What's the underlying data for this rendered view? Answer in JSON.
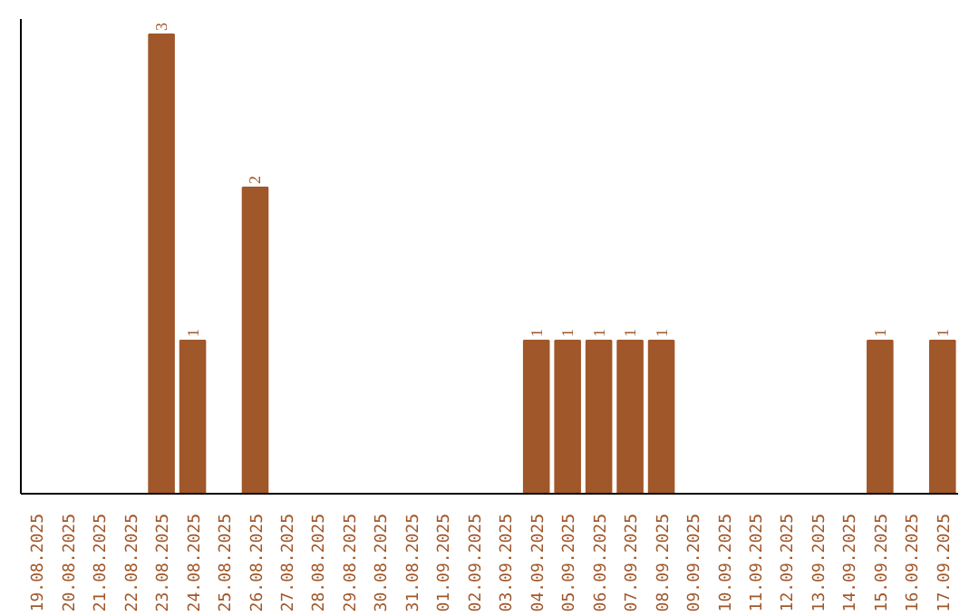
{
  "chart_data": {
    "type": "bar",
    "categories": [
      "19.08.2025",
      "20.08.2025",
      "21.08.2025",
      "22.08.2025",
      "23.08.2025",
      "24.08.2025",
      "25.08.2025",
      "26.08.2025",
      "27.08.2025",
      "28.08.2025",
      "29.08.2025",
      "30.08.2025",
      "31.08.2025",
      "01.09.2025",
      "02.09.2025",
      "03.09.2025",
      "04.09.2025",
      "05.09.2025",
      "06.09.2025",
      "07.09.2025",
      "08.09.2025",
      "09.09.2025",
      "10.09.2025",
      "11.09.2025",
      "12.09.2025",
      "13.09.2025",
      "14.09.2025",
      "15.09.2025",
      "16.09.2025",
      "17.09.2025"
    ],
    "values": [
      0,
      0,
      0,
      0,
      3,
      1,
      0,
      2,
      0,
      0,
      0,
      0,
      0,
      0,
      0,
      0,
      1,
      1,
      1,
      1,
      1,
      0,
      0,
      0,
      0,
      0,
      0,
      1,
      0,
      1
    ],
    "value_labels": [
      null,
      null,
      null,
      null,
      "3",
      "1",
      null,
      "2",
      null,
      null,
      null,
      null,
      null,
      null,
      null,
      null,
      "1",
      "1",
      "1",
      "1",
      "1",
      null,
      null,
      null,
      null,
      null,
      null,
      "1",
      null,
      "1"
    ],
    "color": "#a0572a",
    "ylim": [
      0,
      3.1
    ],
    "tick_labels": "x",
    "grid": false
  }
}
